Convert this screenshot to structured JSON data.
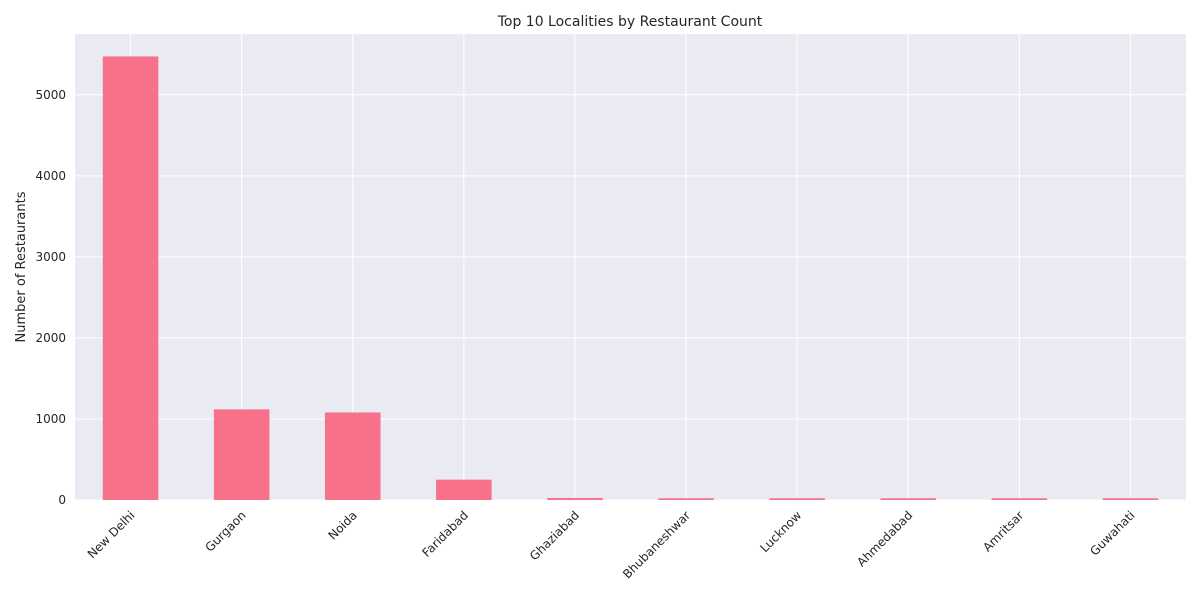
{
  "chart_data": {
    "type": "bar",
    "title": "Top 10 Localities by Restaurant Count",
    "xlabel": "",
    "ylabel": "Number of Restaurants",
    "categories": [
      "New Delhi",
      "Gurgaon",
      "Noida",
      "Faridabad",
      "Ghaziabad",
      "Bhubaneshwar",
      "Lucknow",
      "Ahmedabad",
      "Amritsar",
      "Guwahati"
    ],
    "values": [
      5473,
      1118,
      1080,
      251,
      25,
      21,
      21,
      21,
      21,
      21
    ],
    "ylim": [
      0,
      5750
    ],
    "yticks": [
      0,
      1000,
      2000,
      3000,
      4000,
      5000
    ],
    "ytick_labels": [
      "0",
      "1000",
      "2000",
      "3000",
      "4000",
      "5000"
    ],
    "grid": true,
    "legend": "none",
    "colors": {
      "bar": "#f7718a",
      "plot_background": "#eaeaf2",
      "grid": "#ffffff",
      "text": "#262626"
    }
  }
}
